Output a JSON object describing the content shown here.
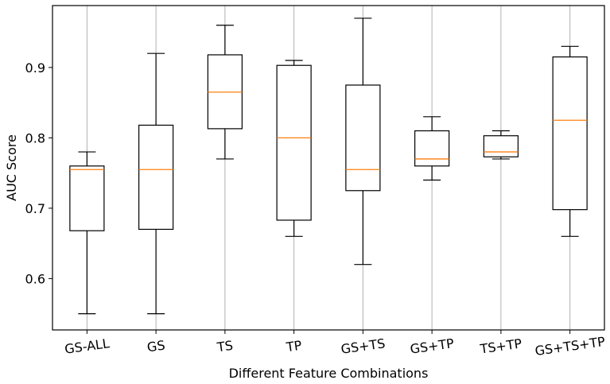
{
  "chart_data": {
    "type": "boxplot",
    "title": "",
    "xlabel": "Different Feature Combinations",
    "ylabel": "AUC Score",
    "ylim": [
      0.527,
      0.988
    ],
    "yticks": [
      0.6,
      0.7,
      0.8,
      0.9
    ],
    "ytick_labels": [
      "0.6",
      "0.7",
      "0.8",
      "0.9"
    ],
    "grid": "vertical",
    "colors": {
      "box": "#000000",
      "median": "#ff7f0e",
      "grid": "#b0b0b0"
    },
    "categories": [
      "GS-ALL",
      "GS",
      "TS",
      "TP",
      "GS+TS",
      "GS+TP",
      "TS+TP",
      "GS+TS+TP"
    ],
    "boxes": [
      {
        "whisker_low": 0.55,
        "q1": 0.668,
        "median": 0.755,
        "q3": 0.76,
        "whisker_high": 0.78
      },
      {
        "whisker_low": 0.55,
        "q1": 0.67,
        "median": 0.755,
        "q3": 0.818,
        "whisker_high": 0.92
      },
      {
        "whisker_low": 0.77,
        "q1": 0.813,
        "median": 0.865,
        "q3": 0.918,
        "whisker_high": 0.96
      },
      {
        "whisker_low": 0.66,
        "q1": 0.683,
        "median": 0.8,
        "q3": 0.903,
        "whisker_high": 0.91
      },
      {
        "whisker_low": 0.62,
        "q1": 0.725,
        "median": 0.755,
        "q3": 0.875,
        "whisker_high": 0.97
      },
      {
        "whisker_low": 0.74,
        "q1": 0.76,
        "median": 0.77,
        "q3": 0.81,
        "whisker_high": 0.83
      },
      {
        "whisker_low": 0.77,
        "q1": 0.773,
        "median": 0.78,
        "q3": 0.803,
        "whisker_high": 0.81
      },
      {
        "whisker_low": 0.66,
        "q1": 0.698,
        "median": 0.825,
        "q3": 0.915,
        "whisker_high": 0.93
      }
    ]
  }
}
